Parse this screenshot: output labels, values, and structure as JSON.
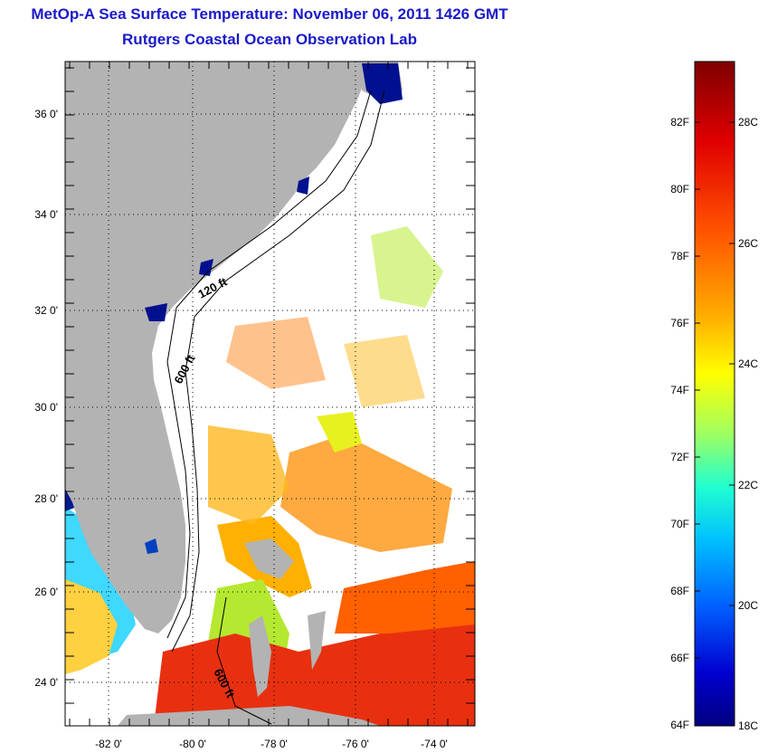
{
  "header": {
    "title": "MetOp-A Sea Surface Temperature:  November 06, 2011 1426 GMT",
    "subtitle": "Rutgers Coastal Ocean Observation Lab"
  },
  "map": {
    "lat_labels": [
      "36 0'",
      "34 0'",
      "32 0'",
      "30 0'",
      "28 0'",
      "26 0'",
      "24 0'"
    ],
    "lon_labels": [
      "-82 0'",
      "-80 0'",
      "-78 0'",
      "-76 0'",
      "-74 0'"
    ],
    "lat_range": [
      23,
      37
    ],
    "lon_range": [
      -83,
      -73
    ],
    "contour_labels": [
      "120 ft",
      "600 ft",
      "600 ft"
    ],
    "land_color": "#b3b3b3",
    "ocean_background": "#ffffff"
  },
  "colorbar": {
    "fahrenheit_labels": [
      "82F",
      "80F",
      "78F",
      "76F",
      "74F",
      "72F",
      "70F",
      "68F",
      "66F",
      "64F"
    ],
    "celsius_labels": [
      "28C",
      "26C",
      "24C",
      "22C",
      "20C",
      "18C"
    ],
    "colors": [
      "#7f0000",
      "#ff0000",
      "#ff8000",
      "#ffff00",
      "#80ff80",
      "#00ffff",
      "#0080ff",
      "#0000ff",
      "#00007f"
    ]
  }
}
